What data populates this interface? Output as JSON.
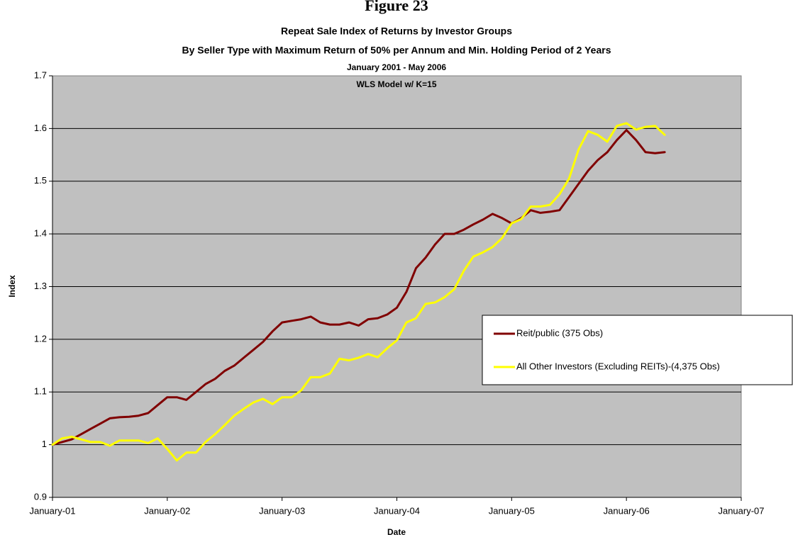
{
  "chart_data": {
    "type": "line",
    "title": "Figure 23",
    "subtitle": "Repeat Sale Index of Returns by Investor Groups",
    "subtitle2": "By Seller Type with Maximum Return of 50% per Annum and Min. Holding Period of 2 Years",
    "date_range": "January 2001 - May 2006",
    "annotation": "WLS Model w/ K=15",
    "x_label": "Date",
    "y_label": "Index",
    "x": [
      "2001-01",
      "2001-02",
      "2001-03",
      "2001-04",
      "2001-05",
      "2001-06",
      "2001-07",
      "2001-08",
      "2001-09",
      "2001-10",
      "2001-11",
      "2001-12",
      "2002-01",
      "2002-02",
      "2002-03",
      "2002-04",
      "2002-05",
      "2002-06",
      "2002-07",
      "2002-08",
      "2002-09",
      "2002-10",
      "2002-11",
      "2002-12",
      "2003-01",
      "2003-02",
      "2003-03",
      "2003-04",
      "2003-05",
      "2003-06",
      "2003-07",
      "2003-08",
      "2003-09",
      "2003-10",
      "2003-11",
      "2003-12",
      "2004-01",
      "2004-02",
      "2004-03",
      "2004-04",
      "2004-05",
      "2004-06",
      "2004-07",
      "2004-08",
      "2004-09",
      "2004-10",
      "2004-11",
      "2004-12",
      "2005-01",
      "2005-02",
      "2005-03",
      "2005-04",
      "2005-05",
      "2005-06",
      "2005-07",
      "2005-08",
      "2005-09",
      "2005-10",
      "2005-11",
      "2005-12",
      "2006-01",
      "2006-02",
      "2006-03",
      "2006-04",
      "2006-05"
    ],
    "series": [
      {
        "name": "Reit/public (375 Obs)",
        "color": "#800000",
        "values": [
          1.0,
          1.005,
          1.01,
          1.02,
          1.03,
          1.04,
          1.05,
          1.052,
          1.053,
          1.055,
          1.06,
          1.075,
          1.09,
          1.09,
          1.085,
          1.1,
          1.115,
          1.125,
          1.14,
          1.15,
          1.165,
          1.18,
          1.195,
          1.215,
          1.232,
          1.235,
          1.238,
          1.243,
          1.232,
          1.228,
          1.228,
          1.232,
          1.226,
          1.238,
          1.24,
          1.247,
          1.26,
          1.29,
          1.335,
          1.355,
          1.38,
          1.4,
          1.4,
          1.408,
          1.418,
          1.427,
          1.438,
          1.43,
          1.42,
          1.43,
          1.445,
          1.44,
          1.442,
          1.445,
          1.47,
          1.495,
          1.52,
          1.54,
          1.555,
          1.578,
          1.597,
          1.578,
          1.555,
          1.553,
          1.555
        ]
      },
      {
        "name": "All Other Investors (Excluding REITs)-(4,375 Obs)",
        "color": "#ffff00",
        "values": [
          1.0,
          1.012,
          1.015,
          1.01,
          1.005,
          1.005,
          0.998,
          1.008,
          1.008,
          1.008,
          1.003,
          1.012,
          0.992,
          0.97,
          0.985,
          0.985,
          1.005,
          1.02,
          1.037,
          1.055,
          1.068,
          1.08,
          1.087,
          1.077,
          1.09,
          1.09,
          1.103,
          1.128,
          1.128,
          1.135,
          1.163,
          1.16,
          1.165,
          1.172,
          1.166,
          1.183,
          1.198,
          1.232,
          1.24,
          1.267,
          1.27,
          1.28,
          1.295,
          1.33,
          1.357,
          1.365,
          1.375,
          1.392,
          1.42,
          1.428,
          1.452,
          1.452,
          1.455,
          1.475,
          1.505,
          1.56,
          1.595,
          1.588,
          1.575,
          1.605,
          1.61,
          1.598,
          1.603,
          1.605,
          1.588
        ]
      }
    ],
    "xlim": [
      "2001-01",
      "2007-01"
    ],
    "xticks": [
      {
        "value": "2001-01",
        "label": "January-01"
      },
      {
        "value": "2002-01",
        "label": "January-02"
      },
      {
        "value": "2003-01",
        "label": "January-03"
      },
      {
        "value": "2004-01",
        "label": "January-04"
      },
      {
        "value": "2005-01",
        "label": "January-05"
      },
      {
        "value": "2006-01",
        "label": "January-06"
      },
      {
        "value": "2007-01",
        "label": "January-07"
      }
    ],
    "ylim": [
      0.9,
      1.7
    ],
    "yticks": [
      0.9,
      1,
      1.1,
      1.2,
      1.3,
      1.4,
      1.5,
      1.6,
      1.7
    ],
    "grid": true,
    "legend": "right"
  }
}
